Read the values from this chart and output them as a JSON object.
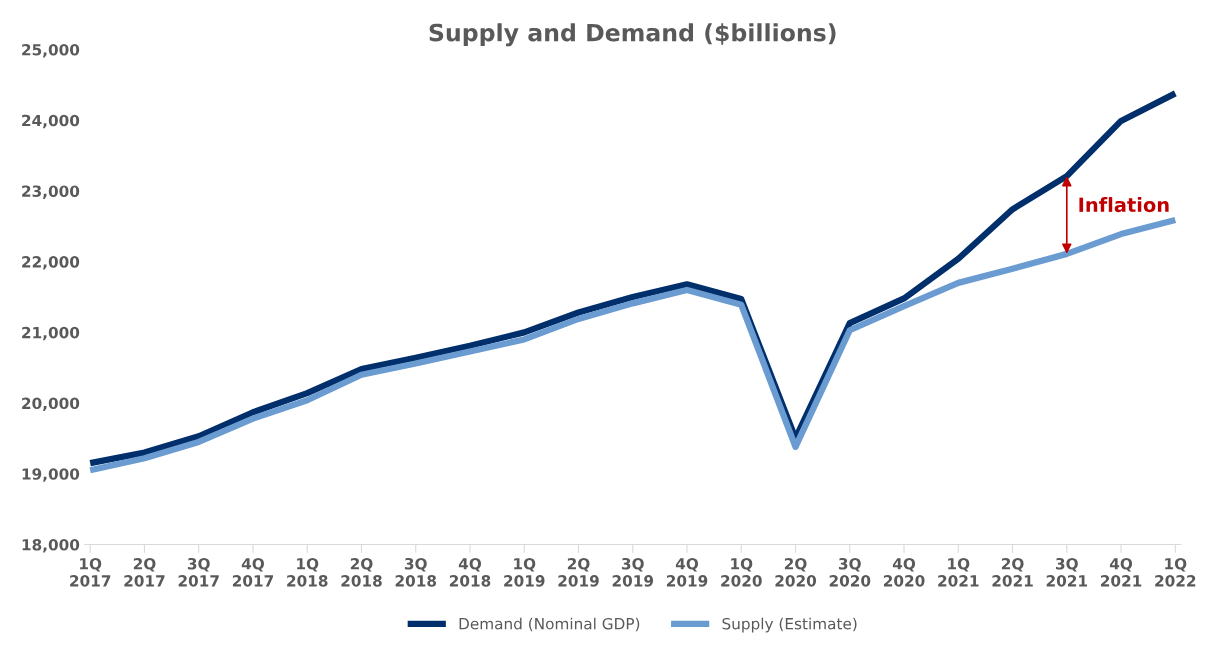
{
  "chart_data": {
    "type": "line",
    "title": "Supply and Demand ($billions)",
    "categories": [
      "1Q\n2017",
      "2Q\n2017",
      "3Q\n2017",
      "4Q\n2017",
      "1Q\n2018",
      "2Q\n2018",
      "3Q\n2018",
      "4Q\n2018",
      "1Q\n2019",
      "2Q\n2019",
      "3Q\n2019",
      "4Q\n2019",
      "1Q\n2020",
      "2Q\n2020",
      "3Q\n2020",
      "4Q\n2020",
      "1Q\n2021",
      "2Q\n2021",
      "3Q\n2021",
      "4Q\n2021",
      "1Q\n2022"
    ],
    "series": [
      {
        "name": "Demand (Nominal GDP)",
        "color": "#002f6c",
        "values": [
          19150,
          19300,
          19530,
          19870,
          20140,
          20480,
          20640,
          20810,
          21000,
          21280,
          21500,
          21680,
          21470,
          19500,
          21130,
          21480,
          22040,
          22740,
          23210,
          23990,
          24380
        ]
      },
      {
        "name": "Supply (Estimate)",
        "color": "#6a9bd1",
        "values": [
          19050,
          19220,
          19450,
          19780,
          20040,
          20400,
          20560,
          20730,
          20900,
          21190,
          21410,
          21600,
          21390,
          19380,
          21030,
          21370,
          21700,
          21900,
          22110,
          22390,
          22590
        ]
      }
    ],
    "ylim": [
      18000,
      25000
    ],
    "yticks": [
      {
        "value": 18000,
        "label": "18,000"
      },
      {
        "value": 19000,
        "label": "19,000"
      },
      {
        "value": 20000,
        "label": "20,000"
      },
      {
        "value": 21000,
        "label": "21,000"
      },
      {
        "value": 22000,
        "label": "22,000"
      },
      {
        "value": 23000,
        "label": "23,000"
      },
      {
        "value": 24000,
        "label": "24,000"
      },
      {
        "value": 25000,
        "label": "25,000"
      }
    ],
    "annotations": [
      {
        "text": "Inflation",
        "x": "3Q\n2021",
        "y": 23210
      }
    ],
    "grid": false,
    "legend": "bottom",
    "marker": "none",
    "line_style": "solid"
  }
}
